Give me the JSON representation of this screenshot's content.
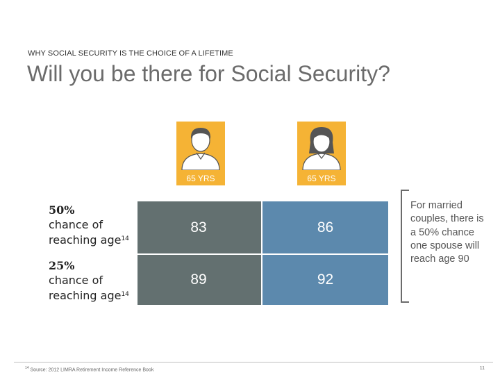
{
  "header": {
    "eyebrow": "WHY SOCIAL SECURITY IS THE CHOICE OF A LIFETIME",
    "title": "Will you be there for Social Security?"
  },
  "people": [
    {
      "icon": "man-icon",
      "label": "65 YRS"
    },
    {
      "icon": "woman-icon",
      "label": "65 YRS"
    }
  ],
  "rows": [
    {
      "pct": "50%",
      "line1": "chance of",
      "line2": "reaching age",
      "footnote": "14",
      "values": [
        "83",
        "86"
      ]
    },
    {
      "pct": "25%",
      "line1": "chance of",
      "line2": "reaching age",
      "footnote": "14",
      "values": [
        "89",
        "92"
      ]
    }
  ],
  "note": "For married couples, there is a 50% chance one spouse will reach age 90",
  "footer": {
    "source_mark": "14",
    "source": "Source: 2012 LIMRA Retirement Income Reference Book",
    "page": "11"
  },
  "colors": {
    "accent": "#f5b335",
    "grey": "#637070",
    "blue": "#5c89ad",
    "title": "#6b6b6b"
  }
}
